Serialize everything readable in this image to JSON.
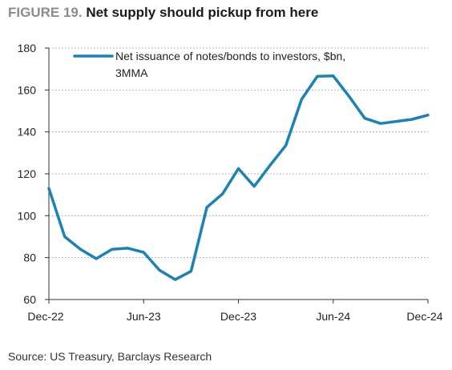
{
  "figure": {
    "label": "FIGURE 19.",
    "title": "Net supply should pickup from here",
    "source": "Source: US Treasury, Barclays Research"
  },
  "colors": {
    "line": "#1a82b5",
    "grid": "#9a9a9a",
    "axis": "#333333"
  },
  "chart_data": {
    "type": "line",
    "title": "Net supply should pickup from here",
    "x": [
      "Dec-22",
      "Jan-23",
      "Feb-23",
      "Mar-23",
      "Apr-23",
      "May-23",
      "Jun-23",
      "Jul-23",
      "Aug-23",
      "Sep-23",
      "Oct-23",
      "Nov-23",
      "Dec-23",
      "Jan-24",
      "Feb-24",
      "Mar-24",
      "Apr-24",
      "May-24",
      "Jun-24",
      "Jul-24",
      "Aug-24",
      "Sep-24",
      "Oct-24",
      "Nov-24",
      "Dec-24"
    ],
    "x_tick_labels": [
      "Dec-22",
      "Jun-23",
      "Dec-23",
      "Jun-24",
      "Dec-24"
    ],
    "y_ticks": [
      60,
      80,
      100,
      120,
      140,
      160,
      180
    ],
    "ylim": [
      60,
      180
    ],
    "grid": "horizontal dotted",
    "legend_position": "top-left",
    "series": [
      {
        "name_lines": [
          "Net issuance of notes/bonds to investors, $bn,",
          "3MMA"
        ],
        "values": [
          113,
          90,
          84,
          79.5,
          84,
          84.5,
          82.5,
          74,
          69.5,
          73.5,
          104,
          110.5,
          122.5,
          114,
          124,
          133.5,
          155.5,
          166.5,
          166.7,
          157,
          146.5,
          144,
          145,
          146,
          148
        ]
      }
    ]
  }
}
